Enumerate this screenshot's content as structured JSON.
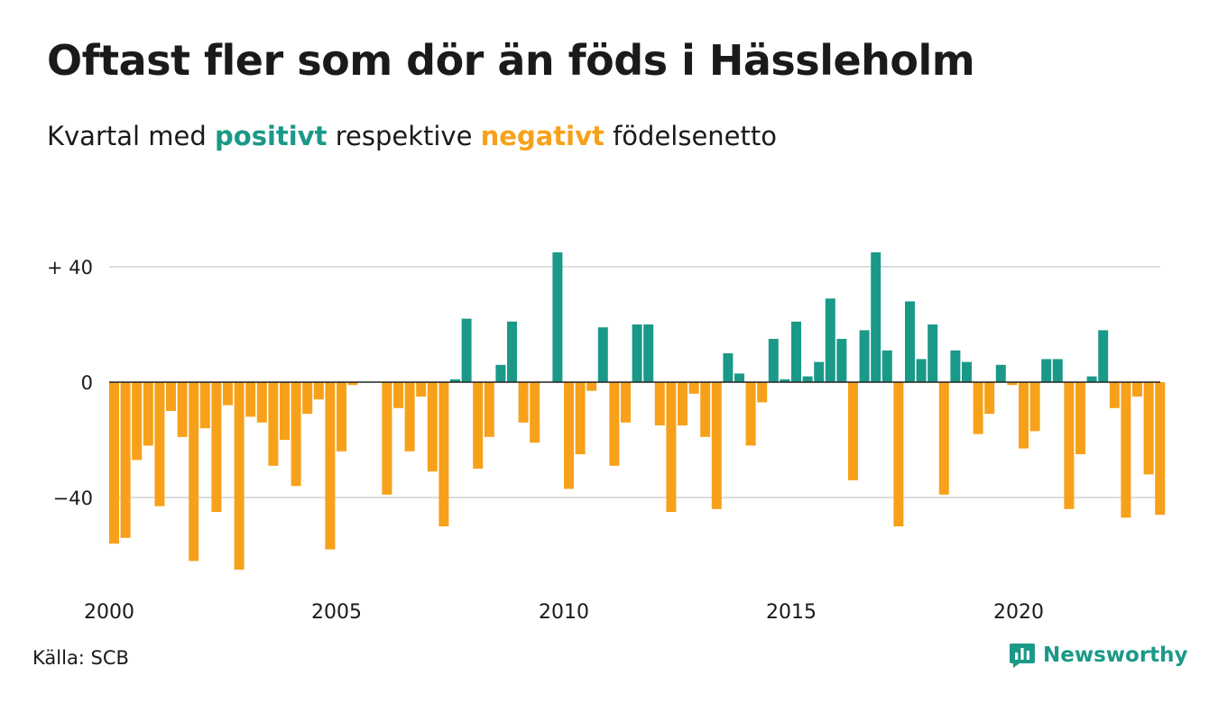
{
  "header": {
    "title": "Oftast fler som dör än föds i Hässleholm",
    "subtitle_before": "Kvartal med",
    "subtitle_positive": "positivt",
    "subtitle_middle": "respektive",
    "subtitle_negative": "negativt",
    "subtitle_after": "födelsenetto"
  },
  "footer": {
    "source": "Källa: SCB",
    "brand": "Newsworthy"
  },
  "colors": {
    "positive": "#1b9988",
    "negative": "#f7a11a",
    "grid": "#dddddd",
    "baseline": "#222222"
  },
  "chart_data": {
    "type": "bar",
    "x_start": "2000 Q1",
    "x_tick_labels": [
      "2000",
      "2005",
      "2010",
      "2015",
      "2020"
    ],
    "y_tick_labels": [
      "+ 40",
      "0",
      "−40"
    ],
    "y_ticks": [
      40,
      0,
      -40
    ],
    "ylim": [
      -66,
      46
    ],
    "grid": true,
    "values": [
      -56,
      -54,
      -27,
      -22,
      -43,
      -10,
      -19,
      -62,
      -16,
      -45,
      -8,
      -65,
      -12,
      -14,
      -29,
      -20,
      -36,
      -11,
      -6,
      -58,
      -24,
      -1,
      0,
      0,
      -39,
      -9,
      -24,
      -5,
      -31,
      -50,
      1,
      22,
      -30,
      -19,
      6,
      21,
      -14,
      -21,
      0,
      45,
      -37,
      -25,
      -3,
      19,
      -29,
      -14,
      20,
      20,
      -15,
      -45,
      -15,
      -4,
      -19,
      -44,
      10,
      3,
      -22,
      -7,
      15,
      1,
      21,
      2,
      7,
      29,
      15,
      -34,
      18,
      45,
      11,
      -50,
      28,
      8,
      20,
      -39,
      11,
      7,
      -18,
      -11,
      6,
      -1,
      -23,
      -17,
      8,
      8,
      -44,
      -25,
      2,
      18,
      -9,
      -47,
      -5,
      -32,
      -46
    ]
  }
}
